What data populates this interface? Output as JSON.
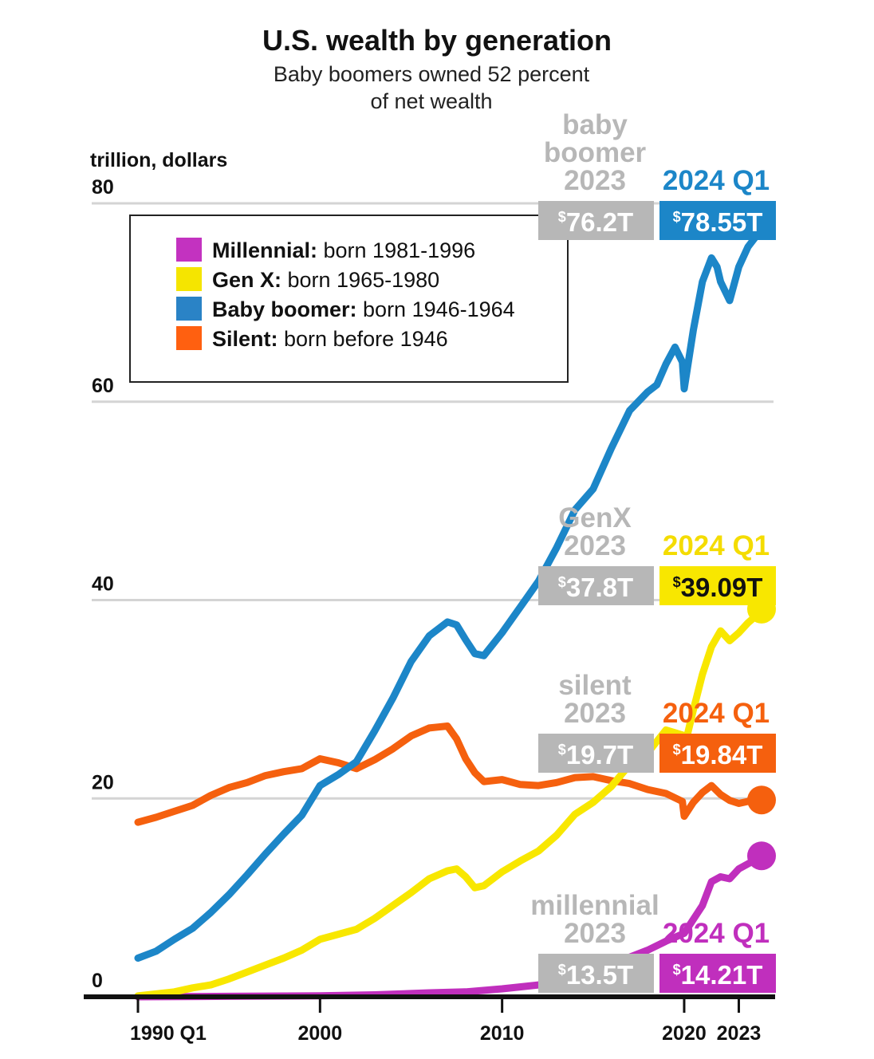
{
  "title": "U.S. wealth by generation",
  "subtitle_lines": [
    "Baby boomers owned 52 percent",
    "of net wealth"
  ],
  "chart_data": {
    "type": "line",
    "title": "U.S. wealth by generation",
    "ylabel": "trillion, dollars",
    "ylim": [
      0,
      80
    ],
    "yticks": [
      0,
      20,
      40,
      60,
      80
    ],
    "xlim": [
      1990.0,
      2024.25
    ],
    "xticks": [
      {
        "value": 1990.0,
        "label": "1990 Q1"
      },
      {
        "value": 2000,
        "label": "2000"
      },
      {
        "value": 2010,
        "label": "2010"
      },
      {
        "value": 2020,
        "label": "2020"
      },
      {
        "value": 2023,
        "label": "2023"
      }
    ],
    "grid": true,
    "legend_position": "top-left",
    "legend": [
      {
        "name": "Millennial",
        "desc": "born 1981-1996",
        "color": "#c332c0"
      },
      {
        "name": "Gen X",
        "desc": "born 1965-1980",
        "color": "#f5e500"
      },
      {
        "name": "Baby boomer",
        "desc": "born 1946-1964",
        "color": "#2a83c6"
      },
      {
        "name": "Silent",
        "desc": "born before 1946",
        "color": "#ff6010"
      }
    ],
    "series": [
      {
        "name": "Baby boomer",
        "color": "#1c86c8",
        "end_value": 78.55,
        "points": [
          [
            1990.0,
            3.9
          ],
          [
            1991.0,
            4.6
          ],
          [
            1992.0,
            5.8
          ],
          [
            1993.0,
            6.9
          ],
          [
            1994.0,
            8.5
          ],
          [
            1995.0,
            10.3
          ],
          [
            1996.0,
            12.3
          ],
          [
            1997.0,
            14.4
          ],
          [
            1998.0,
            16.4
          ],
          [
            1999.0,
            18.3
          ],
          [
            2000.0,
            21.3
          ],
          [
            2001.0,
            22.4
          ],
          [
            2002.0,
            23.7
          ],
          [
            2003.0,
            26.8
          ],
          [
            2004.0,
            30.1
          ],
          [
            2005.0,
            33.8
          ],
          [
            2006.0,
            36.4
          ],
          [
            2007.0,
            37.8
          ],
          [
            2007.5,
            37.5
          ],
          [
            2008.0,
            36.0
          ],
          [
            2008.5,
            34.6
          ],
          [
            2009.0,
            34.4
          ],
          [
            2010.0,
            36.7
          ],
          [
            2011.0,
            39.3
          ],
          [
            2012.0,
            41.9
          ],
          [
            2013.0,
            45.3
          ],
          [
            2014.0,
            49.1
          ],
          [
            2015.0,
            51.2
          ],
          [
            2016.0,
            55.3
          ],
          [
            2017.0,
            59.1
          ],
          [
            2018.0,
            61.0
          ],
          [
            2018.5,
            61.7
          ],
          [
            2019.0,
            63.8
          ],
          [
            2019.5,
            65.5
          ],
          [
            2019.9,
            64.0
          ],
          [
            2020.0,
            61.3
          ],
          [
            2020.5,
            67.2
          ],
          [
            2021.0,
            72.1
          ],
          [
            2021.5,
            74.5
          ],
          [
            2021.8,
            73.6
          ],
          [
            2022.0,
            72.1
          ],
          [
            2022.5,
            70.2
          ],
          [
            2023.0,
            73.6
          ],
          [
            2023.5,
            75.6
          ],
          [
            2024.0,
            76.8
          ],
          [
            2024.25,
            78.55
          ]
        ]
      },
      {
        "name": "Gen X",
        "color": "#f8e700",
        "end_value": 39.09,
        "points": [
          [
            1990.0,
            0.1
          ],
          [
            1991.0,
            0.3
          ],
          [
            1992.0,
            0.5
          ],
          [
            1993.0,
            0.9
          ],
          [
            1994.0,
            1.2
          ],
          [
            1995.0,
            1.8
          ],
          [
            1996.0,
            2.5
          ],
          [
            1997.0,
            3.2
          ],
          [
            1998.0,
            3.9
          ],
          [
            1999.0,
            4.7
          ],
          [
            2000.0,
            5.8
          ],
          [
            2001.0,
            6.3
          ],
          [
            2002.0,
            6.8
          ],
          [
            2003.0,
            7.9
          ],
          [
            2004.0,
            9.2
          ],
          [
            2005.0,
            10.5
          ],
          [
            2006.0,
            11.9
          ],
          [
            2007.0,
            12.7
          ],
          [
            2007.5,
            12.9
          ],
          [
            2008.0,
            12.1
          ],
          [
            2008.5,
            11.0
          ],
          [
            2009.0,
            11.2
          ],
          [
            2010.0,
            12.6
          ],
          [
            2011.0,
            13.7
          ],
          [
            2012.0,
            14.7
          ],
          [
            2013.0,
            16.3
          ],
          [
            2014.0,
            18.4
          ],
          [
            2015.0,
            19.6
          ],
          [
            2016.0,
            21.2
          ],
          [
            2017.0,
            23.4
          ],
          [
            2018.0,
            24.6
          ],
          [
            2019.0,
            26.9
          ],
          [
            2019.9,
            26.4
          ],
          [
            2020.0,
            25.1
          ],
          [
            2020.5,
            28.9
          ],
          [
            2021.0,
            32.5
          ],
          [
            2021.5,
            35.3
          ],
          [
            2022.0,
            36.9
          ],
          [
            2022.5,
            35.9
          ],
          [
            2023.0,
            36.7
          ],
          [
            2023.5,
            37.7
          ],
          [
            2024.0,
            38.5
          ],
          [
            2024.25,
            39.09
          ]
        ]
      },
      {
        "name": "Silent",
        "color": "#f5600e",
        "end_value": 19.84,
        "points": [
          [
            1990.0,
            17.6
          ],
          [
            1991.0,
            18.1
          ],
          [
            1992.0,
            18.7
          ],
          [
            1993.0,
            19.3
          ],
          [
            1994.0,
            20.3
          ],
          [
            1995.0,
            21.1
          ],
          [
            1996.0,
            21.6
          ],
          [
            1997.0,
            22.3
          ],
          [
            1998.0,
            22.7
          ],
          [
            1999.0,
            23.0
          ],
          [
            2000.0,
            24.0
          ],
          [
            2001.0,
            23.6
          ],
          [
            2002.0,
            23.0
          ],
          [
            2003.0,
            23.9
          ],
          [
            2004.0,
            25.0
          ],
          [
            2005.0,
            26.3
          ],
          [
            2006.0,
            27.1
          ],
          [
            2006.5,
            27.2
          ],
          [
            2007.0,
            27.3
          ],
          [
            2007.5,
            26.0
          ],
          [
            2008.0,
            24.0
          ],
          [
            2008.5,
            22.6
          ],
          [
            2009.0,
            21.7
          ],
          [
            2010.0,
            21.9
          ],
          [
            2011.0,
            21.4
          ],
          [
            2012.0,
            21.3
          ],
          [
            2013.0,
            21.6
          ],
          [
            2014.0,
            22.1
          ],
          [
            2015.0,
            22.2
          ],
          [
            2016.0,
            21.8
          ],
          [
            2017.0,
            21.5
          ],
          [
            2018.0,
            20.9
          ],
          [
            2019.0,
            20.5
          ],
          [
            2019.9,
            19.7
          ],
          [
            2020.0,
            18.2
          ],
          [
            2020.5,
            19.6
          ],
          [
            2021.0,
            20.6
          ],
          [
            2021.5,
            21.3
          ],
          [
            2022.0,
            20.4
          ],
          [
            2022.5,
            19.8
          ],
          [
            2023.0,
            19.5
          ],
          [
            2023.5,
            19.7
          ],
          [
            2024.0,
            19.8
          ],
          [
            2024.25,
            19.84
          ]
        ]
      },
      {
        "name": "Millennial",
        "color": "#c02fbd",
        "end_value": 14.21,
        "points": [
          [
            1990.0,
            0.0
          ],
          [
            1995.0,
            0.05
          ],
          [
            2000.0,
            0.1
          ],
          [
            2003.0,
            0.2
          ],
          [
            2006.0,
            0.4
          ],
          [
            2008.0,
            0.5
          ],
          [
            2010.0,
            0.8
          ],
          [
            2012.0,
            1.2
          ],
          [
            2013.0,
            1.6
          ],
          [
            2014.0,
            2.1
          ],
          [
            2015.0,
            2.6
          ],
          [
            2016.0,
            3.2
          ],
          [
            2017.0,
            4.0
          ],
          [
            2018.0,
            4.7
          ],
          [
            2019.0,
            5.6
          ],
          [
            2020.0,
            6.4
          ],
          [
            2021.0,
            9.2
          ],
          [
            2021.5,
            11.6
          ],
          [
            2022.0,
            12.1
          ],
          [
            2022.5,
            11.9
          ],
          [
            2023.0,
            12.9
          ],
          [
            2023.5,
            13.4
          ],
          [
            2024.0,
            13.9
          ],
          [
            2024.25,
            14.21
          ]
        ]
      }
    ]
  },
  "callouts": {
    "boomer": {
      "label_lines": [
        "baby",
        "boomer",
        "2023"
      ],
      "value_2023": "76.2T",
      "label_2024": "2024 Q1",
      "value_2024": "78.55T",
      "color": "#1c86c8"
    },
    "genx": {
      "label_lines": [
        "GenX",
        "2023"
      ],
      "value_2023": "37.8T",
      "label_2024": "2024 Q1",
      "value_2024": "39.09T",
      "color": "#f8e700"
    },
    "silent": {
      "label_lines": [
        "silent",
        "2023"
      ],
      "value_2023": "19.7T",
      "label_2024": "2024 Q1",
      "value_2024": "19.84T",
      "color": "#f5600e"
    },
    "millennial": {
      "label_lines": [
        "millennial",
        "2023"
      ],
      "value_2023": "13.5T",
      "label_2024": "2024 Q1",
      "value_2024": "14.21T",
      "color": "#c02fbd"
    }
  },
  "currency_symbol": "$",
  "gray_color": "#b7b7b7"
}
